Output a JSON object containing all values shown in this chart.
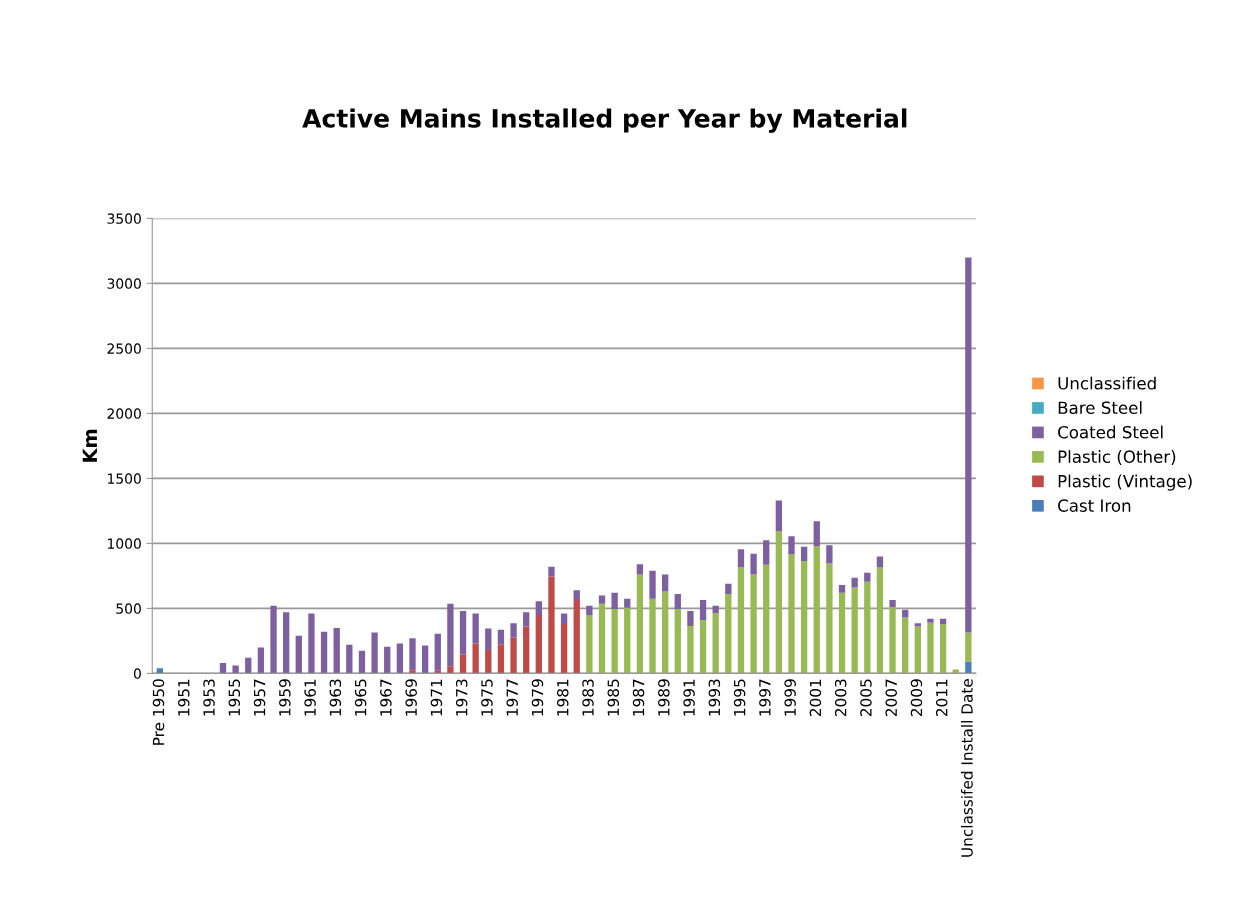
{
  "chart_data": {
    "type": "bar",
    "stacked": true,
    "title": "Active Mains Installed per Year by Material",
    "ylabel": "Km",
    "categories": [
      "Pre 1950",
      null,
      "1951",
      null,
      "1953",
      null,
      "1955",
      null,
      "1957",
      null,
      "1959",
      null,
      "1961",
      null,
      "1963",
      null,
      "1965",
      null,
      "1967",
      null,
      "1969",
      null,
      "1971",
      null,
      "1973",
      null,
      "1975",
      null,
      "1977",
      null,
      "1979",
      null,
      "1981",
      null,
      "1983",
      null,
      "1985",
      null,
      "1987",
      null,
      "1989",
      null,
      "1991",
      null,
      "1993",
      null,
      "1995",
      null,
      "1997",
      null,
      "1999",
      null,
      "2001",
      null,
      "2003",
      null,
      "2005",
      null,
      "2007",
      null,
      "2009",
      null,
      "2011",
      null,
      "Unclassifed Install Date"
    ],
    "series": [
      {
        "name": "Cast Iron",
        "color": "#4a7ebb",
        "values": [
          40,
          0,
          0,
          0,
          0,
          0,
          0,
          0,
          0,
          0,
          0,
          0,
          0,
          0,
          0,
          0,
          0,
          0,
          0,
          0,
          0,
          0,
          0,
          0,
          0,
          0,
          0,
          0,
          0,
          0,
          0,
          0,
          0,
          0,
          0,
          0,
          0,
          0,
          0,
          0,
          0,
          0,
          0,
          0,
          0,
          0,
          0,
          0,
          0,
          0,
          0,
          0,
          0,
          0,
          0,
          0,
          0,
          0,
          0,
          0,
          0,
          0,
          0,
          0,
          90
        ]
      },
      {
        "name": "Plastic (Vintage)",
        "color": "#be4b48",
        "values": [
          0,
          0,
          0,
          0,
          0,
          0,
          0,
          0,
          0,
          0,
          0,
          0,
          0,
          0,
          0,
          0,
          0,
          0,
          0,
          0,
          25,
          0,
          20,
          55,
          145,
          230,
          180,
          220,
          275,
          360,
          450,
          745,
          380,
          565,
          0,
          0,
          0,
          0,
          0,
          0,
          0,
          0,
          0,
          0,
          0,
          0,
          0,
          0,
          0,
          0,
          0,
          0,
          0,
          0,
          0,
          0,
          0,
          0,
          0,
          0,
          0,
          0,
          0,
          0,
          0
        ]
      },
      {
        "name": "Plastic (Other)",
        "color": "#98b954",
        "values": [
          0,
          0,
          0,
          0,
          0,
          0,
          0,
          0,
          0,
          0,
          0,
          0,
          0,
          0,
          0,
          0,
          0,
          0,
          0,
          0,
          0,
          0,
          0,
          0,
          0,
          0,
          0,
          0,
          0,
          0,
          0,
          0,
          0,
          0,
          445,
          535,
          495,
          505,
          760,
          575,
          630,
          495,
          365,
          410,
          465,
          610,
          815,
          760,
          835,
          1095,
          915,
          865,
          980,
          850,
          620,
          660,
          705,
          815,
          510,
          430,
          360,
          390,
          380,
          30,
          225
        ]
      },
      {
        "name": "Coated Steel",
        "color": "#7d60a0",
        "values": [
          0,
          0,
          0,
          0,
          0,
          80,
          60,
          120,
          200,
          520,
          470,
          290,
          460,
          320,
          350,
          220,
          175,
          315,
          205,
          230,
          245,
          215,
          285,
          480,
          335,
          230,
          165,
          115,
          110,
          110,
          105,
          75,
          80,
          75,
          75,
          65,
          125,
          70,
          80,
          215,
          130,
          115,
          115,
          155,
          55,
          80,
          140,
          160,
          190,
          235,
          140,
          110,
          190,
          135,
          60,
          75,
          70,
          85,
          55,
          60,
          25,
          30,
          40,
          0,
          2885
        ]
      },
      {
        "name": "Bare Steel",
        "color": "#46aac5",
        "values": [
          0,
          0,
          0,
          0,
          0,
          0,
          0,
          0,
          0,
          0,
          0,
          0,
          0,
          0,
          0,
          0,
          0,
          0,
          0,
          0,
          0,
          0,
          0,
          0,
          0,
          0,
          0,
          0,
          0,
          0,
          0,
          0,
          0,
          0,
          0,
          0,
          0,
          0,
          0,
          0,
          0,
          0,
          0,
          0,
          0,
          0,
          0,
          0,
          0,
          0,
          0,
          0,
          0,
          0,
          0,
          0,
          0,
          0,
          0,
          0,
          0,
          0,
          0,
          0,
          0
        ]
      },
      {
        "name": "Unclassified",
        "color": "#f79646",
        "values": [
          0,
          0,
          0,
          0,
          0,
          0,
          0,
          0,
          0,
          0,
          0,
          0,
          0,
          0,
          0,
          0,
          0,
          0,
          0,
          0,
          0,
          0,
          0,
          0,
          0,
          0,
          0,
          0,
          0,
          0,
          0,
          0,
          0,
          0,
          0,
          0,
          0,
          0,
          0,
          0,
          0,
          0,
          0,
          0,
          0,
          0,
          0,
          0,
          0,
          0,
          0,
          0,
          0,
          0,
          0,
          0,
          0,
          0,
          0,
          0,
          0,
          0,
          0,
          0,
          0
        ]
      }
    ],
    "ylim": [
      0,
      3500
    ],
    "yticks": [
      0,
      500,
      1000,
      1500,
      2000,
      2500,
      3000,
      3500
    ],
    "grid": "y",
    "legend": "right"
  }
}
